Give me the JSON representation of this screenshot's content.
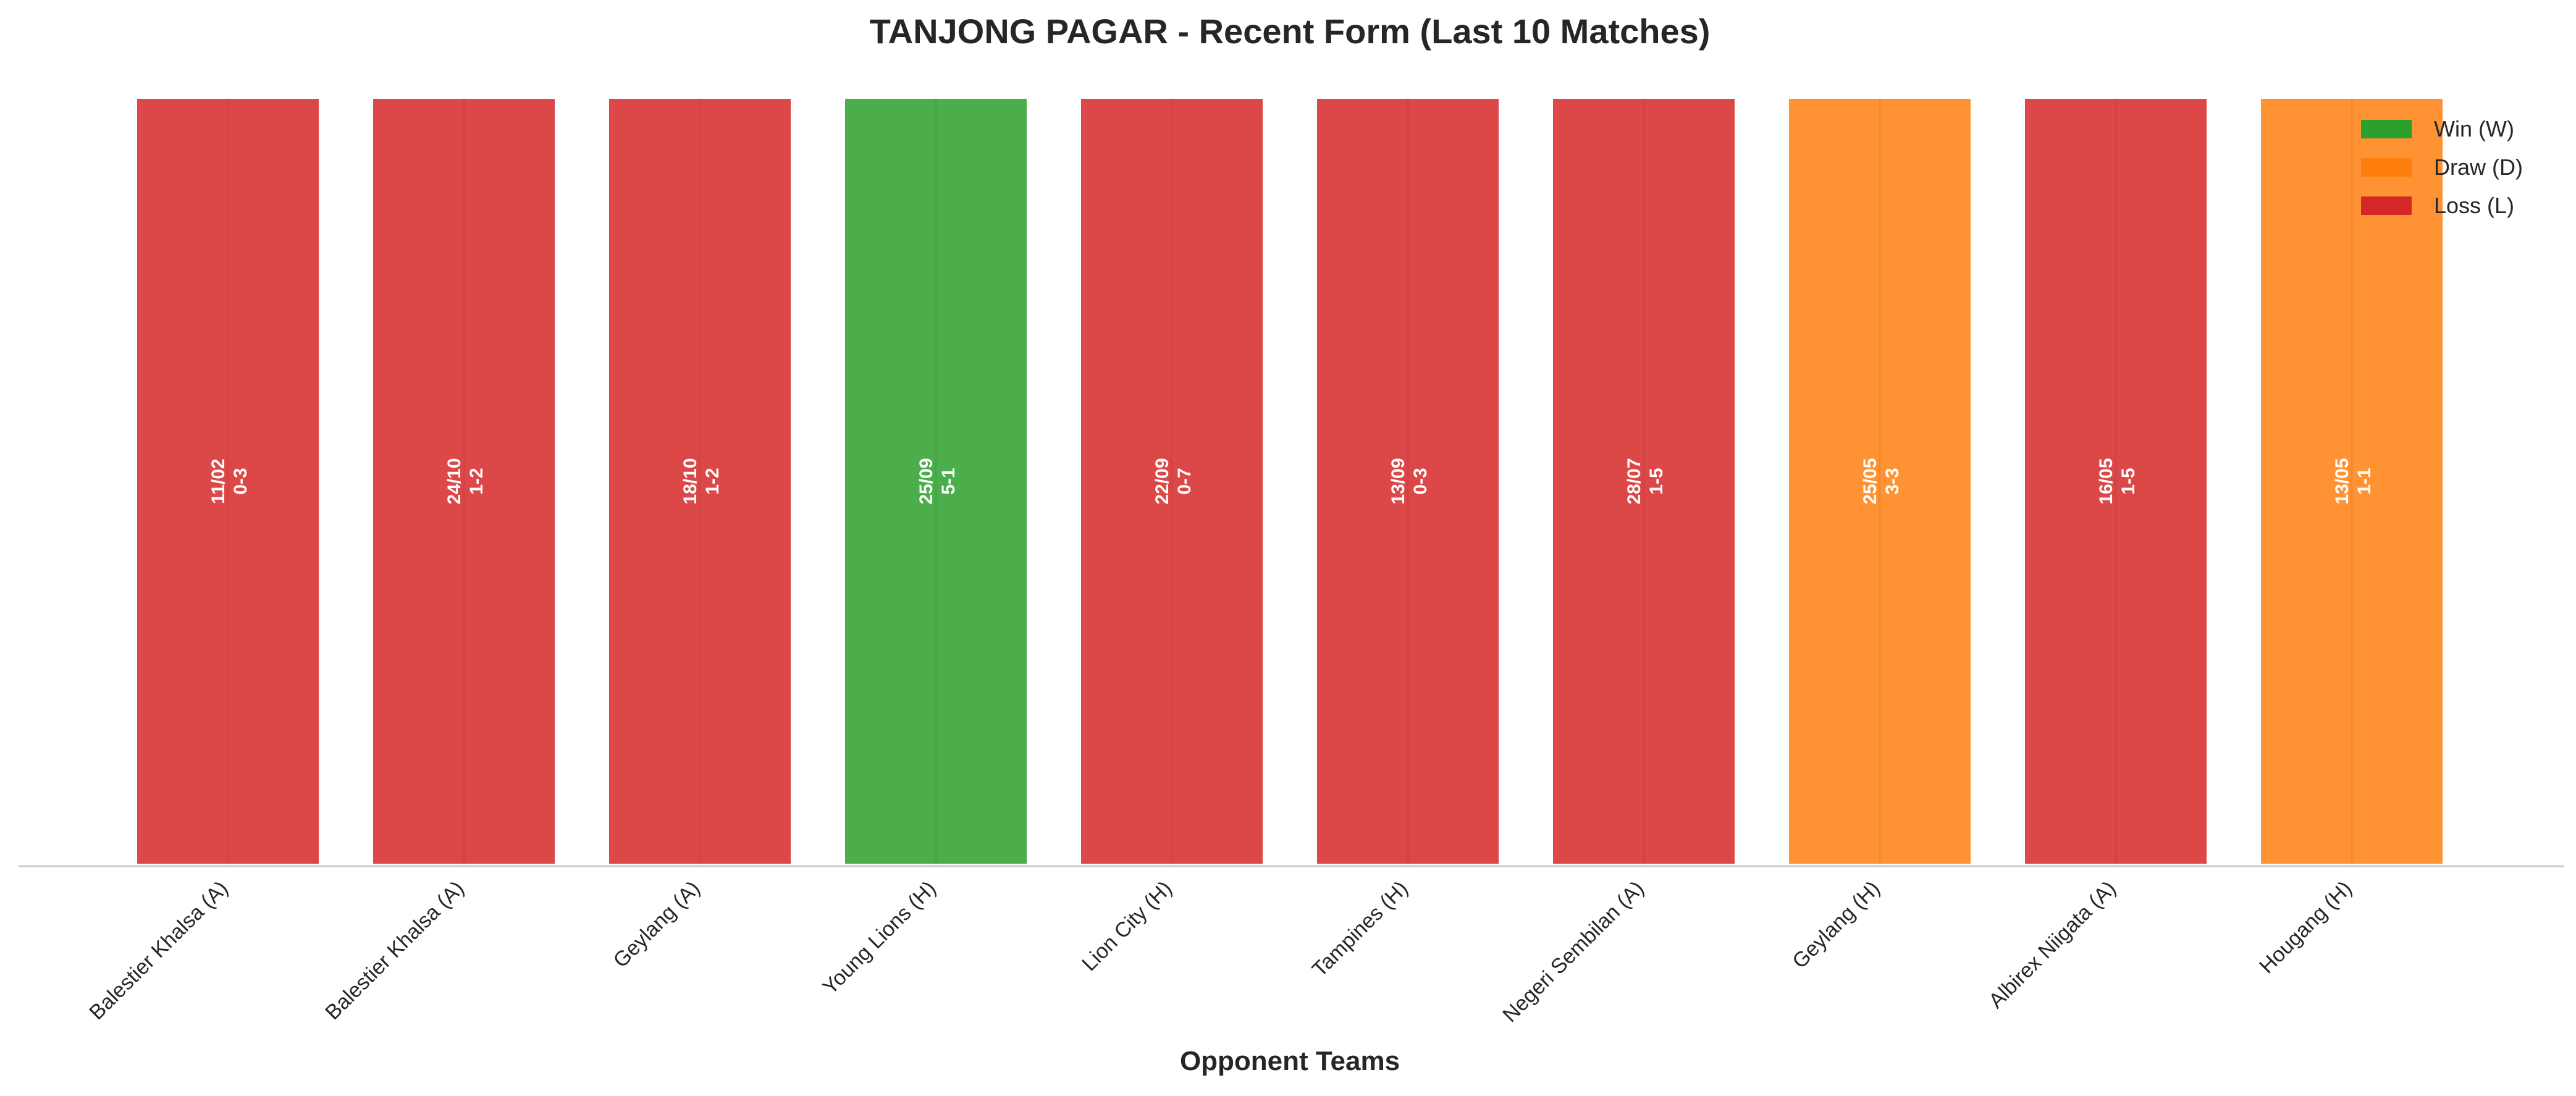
{
  "chart_data": {
    "type": "bar",
    "title": "TANJONG PAGAR - Recent Form (Last 10 Matches)",
    "xlabel": "Opponent Teams",
    "ylabel": "",
    "categories": [
      "Balestier Khalsa (A)",
      "Balestier Khalsa (A)",
      "Geylang (A)",
      "Young Lions (H)",
      "Lion City (H)",
      "Tampines (H)",
      "Negeri Sembilan (A)",
      "Geylang (H)",
      "Albirex Niigata (A)",
      "Hougang (H)"
    ],
    "values": [
      1,
      1,
      1,
      1,
      1,
      1,
      1,
      1,
      1,
      1
    ],
    "results": [
      "L",
      "L",
      "L",
      "W",
      "L",
      "L",
      "L",
      "D",
      "L",
      "D"
    ],
    "dates": [
      "11/02",
      "24/10",
      "18/10",
      "25/09",
      "22/09",
      "13/09",
      "28/07",
      "25/05",
      "16/05",
      "13/05"
    ],
    "scores": [
      "0-3",
      "1-2",
      "1-2",
      "5-1",
      "0-7",
      "0-3",
      "1-5",
      "3-3",
      "1-5",
      "1-1"
    ],
    "ylim": [
      0,
      1
    ],
    "grid": false,
    "legend": {
      "placement": "top-right",
      "entries": [
        {
          "key": "W",
          "label": "Win (W)"
        },
        {
          "key": "D",
          "label": "Draw (D)"
        },
        {
          "key": "L",
          "label": "Loss (L)"
        }
      ]
    },
    "colors": {
      "W": "#2ca02c",
      "D": "#ff7f0e",
      "L": "#d62728"
    }
  }
}
